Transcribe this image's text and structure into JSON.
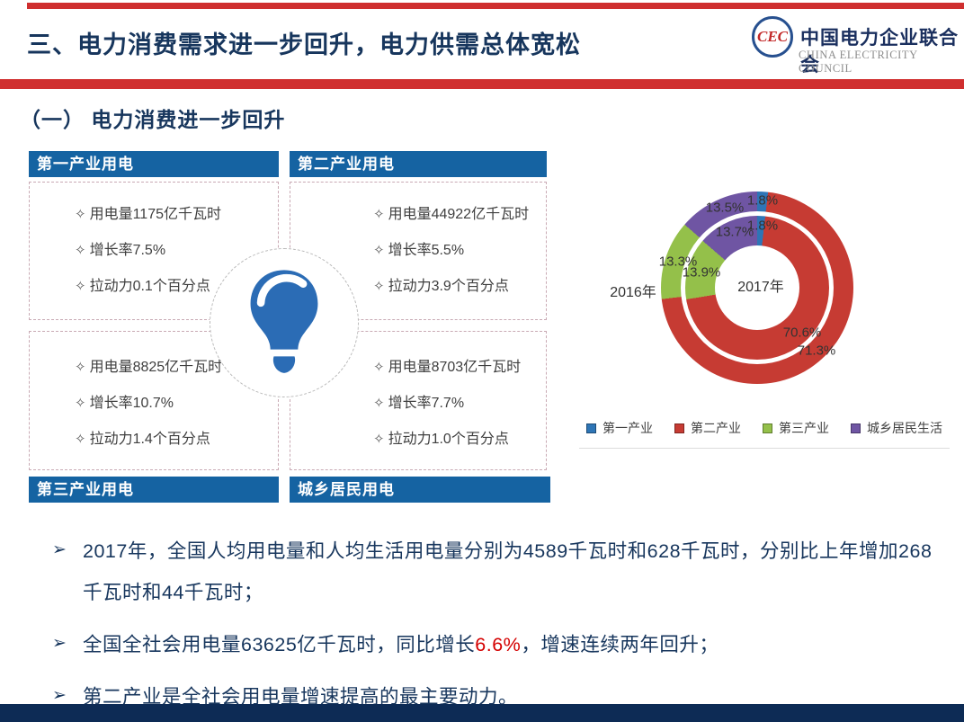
{
  "header": {
    "title": "三、电力消费需求进一步回升，电力供需总体宽松",
    "logo": {
      "monogram": "CEC",
      "org_cn": "中国电力企业联合会",
      "org_en": "CHINA ELECTRICITY COUNCIL"
    }
  },
  "section": {
    "title": "（一） 电力消费进一步回升"
  },
  "bullet_char": "✧",
  "panels": [
    {
      "title": "第一产业用电",
      "items": [
        "用电量1175亿千瓦时",
        "增长率7.5%",
        "拉动力0.1个百分点"
      ]
    },
    {
      "title": "第二产业用电",
      "items": [
        "用电量44922亿千瓦时",
        "增长率5.5%",
        "拉动力3.9个百分点"
      ]
    },
    {
      "title": "第三产业用电",
      "items": [
        "用电量8825亿千瓦时",
        "增长率10.7%",
        "拉动力1.4个百分点"
      ]
    },
    {
      "title": "城乡居民用电",
      "items": [
        "用电量8703亿千瓦时",
        "增长率7.7%",
        "拉动力1.0个百分点"
      ]
    }
  ],
  "chart_data": {
    "type": "pie",
    "subtype": "double-ring-donut",
    "categories": [
      "第一产业",
      "第二产业",
      "第三产业",
      "城乡居民生活"
    ],
    "colors": [
      "#2e75b6",
      "#c63b33",
      "#94c04a",
      "#6f55a3"
    ],
    "rings": [
      {
        "name": "2016年",
        "position": "outer",
        "values": [
          1.8,
          71.3,
          13.3,
          13.5
        ]
      },
      {
        "name": "2017年",
        "position": "inner",
        "values": [
          1.8,
          70.6,
          13.9,
          13.7
        ]
      }
    ],
    "labels": {
      "outer_first": "1.8%",
      "outer_second": "71.3%",
      "outer_third": "13.3%",
      "outer_fourth": "13.5%",
      "inner_first": "1.8%",
      "inner_second": "70.6%",
      "inner_third": "13.9%",
      "inner_fourth": "13.7%",
      "outer_year": "2016年",
      "inner_year": "2017年"
    },
    "legend_position": "bottom"
  },
  "notes": {
    "marker": "➢",
    "n1": "2017年，全国人均用电量和人均生活用电量分别为4589千瓦时和628千瓦时，分别比上年增加268千瓦时和44千瓦时；",
    "n2_pre": "全国全社会用电量63625亿千瓦时，同比增长",
    "n2_red": "6.6%",
    "n2_post": "，增速连续两年回升；",
    "n3": "第二产业是全社会用电量增速提高的最主要动力。"
  }
}
